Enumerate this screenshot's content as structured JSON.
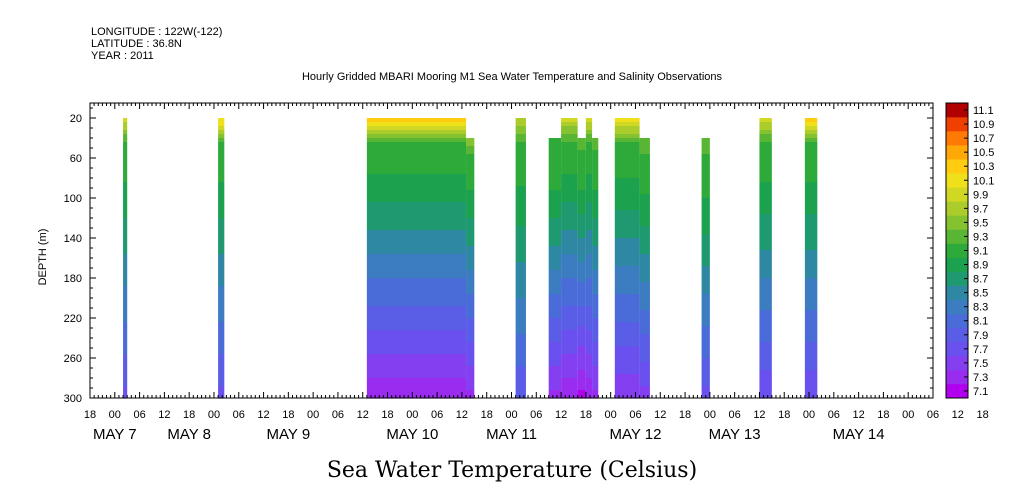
{
  "header": {
    "longitude": "LONGITUDE : 122W(-122)",
    "latitude": "LATITUDE : 36.8N",
    "year": "YEAR : 2011"
  },
  "chart_data": {
    "type": "heatmap",
    "title": "Hourly Gridded MBARI Mooring M1 Sea Water Temperature and Salinity Observations",
    "xlabel": "",
    "ylabel": "DEPTH (m)",
    "bottom_title": "Sea Water Temperature (Celsius)",
    "y_reversed": true,
    "ylim": [
      300,
      5
    ],
    "y_ticks": [
      20,
      60,
      100,
      140,
      180,
      220,
      260,
      300
    ],
    "x_unit": "hours since 2011-05-06 18:00",
    "xlim": [
      0,
      204
    ],
    "x_hour_ticks": [
      "18",
      "00",
      "06",
      "12",
      "18",
      "00",
      "06",
      "12",
      "18",
      "00",
      "06",
      "12",
      "18",
      "00",
      "06",
      "12",
      "18",
      "00",
      "06",
      "12",
      "18",
      "00",
      "06",
      "12",
      "18",
      "00",
      "06",
      "12",
      "18",
      "00",
      "06",
      "12",
      "18",
      "00",
      "06",
      "12",
      "18"
    ],
    "x_date_labels": [
      {
        "label": "MAY  7",
        "x": 6
      },
      {
        "label": "MAY  8",
        "x": 24
      },
      {
        "label": "MAY  9",
        "x": 48
      },
      {
        "label": "MAY 10",
        "x": 78
      },
      {
        "label": "MAY 11",
        "x": 102
      },
      {
        "label": "MAY 12",
        "x": 132
      },
      {
        "label": "MAY 13",
        "x": 156
      },
      {
        "label": "MAY 14",
        "x": 186
      }
    ],
    "colorbar": {
      "levels": [
        7.1,
        7.3,
        7.5,
        7.7,
        7.9,
        8.1,
        8.3,
        8.5,
        8.7,
        8.9,
        9.1,
        9.3,
        9.5,
        9.7,
        9.9,
        10.1,
        10.3,
        10.5,
        10.7,
        10.9,
        11.1
      ],
      "colors": [
        "#b000ee",
        "#9a2cf0",
        "#8440f0",
        "#6a50ee",
        "#5a5ee6",
        "#4a6cd8",
        "#3c7cc0",
        "#2e88a4",
        "#1f9a70",
        "#1ca24e",
        "#2eaa3a",
        "#58b634",
        "#84c230",
        "#abcc2a",
        "#d0d824",
        "#f0e01c",
        "#ffcc10",
        "#ffa808",
        "#ff7a04",
        "#f04000",
        "#b00000"
      ]
    },
    "segments": [
      {
        "x0": 8,
        "x1": 9,
        "top": 20,
        "surface_temp": 9.9,
        "bottom_temp": 7.7
      },
      {
        "x0": 31,
        "x1": 32.5,
        "top": 20,
        "surface_temp": 10.2,
        "bottom_temp": 7.7
      },
      {
        "x0": 67,
        "x1": 91,
        "top": 20,
        "surface_temp": 10.3,
        "bottom_temp": 7.2
      },
      {
        "x0": 91,
        "x1": 93,
        "top": 40,
        "surface_temp": 9.5,
        "bottom_temp": 7.3
      },
      {
        "x0": 103,
        "x1": 105.5,
        "top": 20,
        "surface_temp": 9.7,
        "bottom_temp": 7.8
      },
      {
        "x0": 111,
        "x1": 114,
        "top": 40,
        "surface_temp": 9.2,
        "bottom_temp": 7.3
      },
      {
        "x0": 114,
        "x1": 118,
        "top": 20,
        "surface_temp": 9.8,
        "bottom_temp": 7.2
      },
      {
        "x0": 118,
        "x1": 120,
        "top": 40,
        "surface_temp": 9.3,
        "bottom_temp": 7.1
      },
      {
        "x0": 120,
        "x1": 121.5,
        "top": 20,
        "surface_temp": 9.9,
        "bottom_temp": 7.2
      },
      {
        "x0": 121.5,
        "x1": 123,
        "top": 40,
        "surface_temp": 9.3,
        "bottom_temp": 7.3
      },
      {
        "x0": 127,
        "x1": 133,
        "top": 20,
        "surface_temp": 10.1,
        "bottom_temp": 7.4
      },
      {
        "x0": 133,
        "x1": 135.5,
        "top": 40,
        "surface_temp": 9.4,
        "bottom_temp": 7.5
      },
      {
        "x0": 148,
        "x1": 150,
        "top": 40,
        "surface_temp": 9.4,
        "bottom_temp": 7.7
      },
      {
        "x0": 162,
        "x1": 165,
        "top": 20,
        "surface_temp": 9.9,
        "bottom_temp": 7.6
      },
      {
        "x0": 173,
        "x1": 176,
        "top": 20,
        "surface_temp": 10.3,
        "bottom_temp": 7.6
      }
    ]
  }
}
